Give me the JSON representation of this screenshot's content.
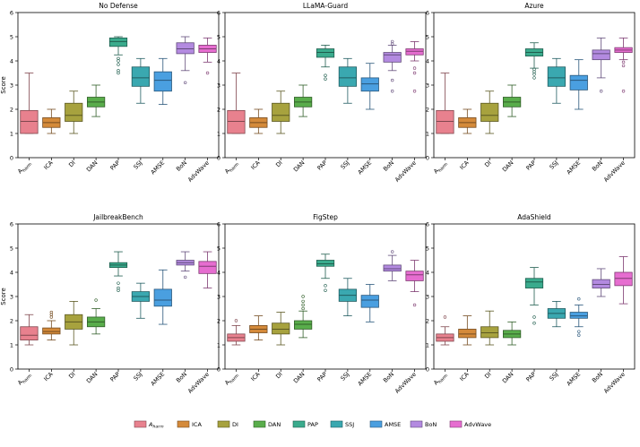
{
  "chart_data": {
    "type": "box",
    "ylabel": "Score",
    "ylim": [
      0,
      6
    ],
    "yticks": [
      0,
      1,
      2,
      3,
      4,
      5,
      6
    ],
    "categories": [
      "A_harm",
      "ICA",
      "DI",
      "DAN",
      "PAP",
      "SSJ",
      "AMSE",
      "BoN",
      "AdvWave"
    ],
    "category_labels": [
      {
        "main": "A",
        "sub": "harm"
      },
      {
        "main": "ICA"
      },
      {
        "main": "DI"
      },
      {
        "main": "DAN"
      },
      {
        "main": "PAP"
      },
      {
        "main": "SSJ"
      },
      {
        "main": "AMSE"
      },
      {
        "main": "BoN"
      },
      {
        "main": "AdvWave"
      }
    ],
    "colors": [
      "#e8818e",
      "#d48a3a",
      "#a7a23e",
      "#59ad4b",
      "#3aab8d",
      "#3aa8b0",
      "#4a9fe0",
      "#b38ae0",
      "#e66dd0"
    ],
    "legend_position": "bottom",
    "panels": [
      {
        "title": "No Defense",
        "boxes": [
          {
            "min": 1.0,
            "q1": 1.0,
            "median": 1.5,
            "q3": 1.95,
            "max": 3.5,
            "outliers": []
          },
          {
            "min": 1.0,
            "q1": 1.25,
            "median": 1.45,
            "q3": 1.65,
            "max": 2.0,
            "outliers": []
          },
          {
            "min": 1.0,
            "q1": 1.5,
            "median": 1.75,
            "q3": 2.25,
            "max": 2.75,
            "outliers": []
          },
          {
            "min": 1.7,
            "q1": 2.1,
            "median": 2.3,
            "q3": 2.5,
            "max": 3.0,
            "outliers": []
          },
          {
            "min": 4.25,
            "q1": 4.6,
            "median": 4.8,
            "q3": 4.95,
            "max": 5.0,
            "outliers": [
              4.1,
              4.0,
              3.85,
              3.6,
              3.5
            ]
          },
          {
            "min": 2.25,
            "q1": 2.95,
            "median": 3.3,
            "q3": 3.75,
            "max": 4.1,
            "outliers": []
          },
          {
            "min": 2.2,
            "q1": 2.75,
            "median": 3.2,
            "q3": 3.55,
            "max": 4.1,
            "outliers": []
          },
          {
            "min": 3.6,
            "q1": 4.3,
            "median": 4.5,
            "q3": 4.75,
            "max": 5.0,
            "outliers": [
              3.1
            ]
          },
          {
            "min": 3.95,
            "q1": 4.35,
            "median": 4.5,
            "q3": 4.65,
            "max": 4.95,
            "outliers": [
              3.5
            ]
          }
        ]
      },
      {
        "title": "LLaMA-Guard",
        "boxes": [
          {
            "min": 1.0,
            "q1": 1.0,
            "median": 1.5,
            "q3": 1.95,
            "max": 3.5,
            "outliers": []
          },
          {
            "min": 1.0,
            "q1": 1.25,
            "median": 1.45,
            "q3": 1.65,
            "max": 2.0,
            "outliers": []
          },
          {
            "min": 1.0,
            "q1": 1.5,
            "median": 1.75,
            "q3": 2.25,
            "max": 2.75,
            "outliers": []
          },
          {
            "min": 1.7,
            "q1": 2.1,
            "median": 2.3,
            "q3": 2.5,
            "max": 3.0,
            "outliers": []
          },
          {
            "min": 3.75,
            "q1": 4.15,
            "median": 4.35,
            "q3": 4.5,
            "max": 4.65,
            "outliers": [
              3.4,
              3.25
            ]
          },
          {
            "min": 2.25,
            "q1": 2.95,
            "median": 3.3,
            "q3": 3.75,
            "max": 4.1,
            "outliers": []
          },
          {
            "min": 2.0,
            "q1": 2.75,
            "median": 3.05,
            "q3": 3.3,
            "max": 3.9,
            "outliers": []
          },
          {
            "min": 3.6,
            "q1": 3.95,
            "median": 4.25,
            "q3": 4.35,
            "max": 4.65,
            "outliers": [
              4.8,
              4.7,
              3.2,
              2.75
            ]
          },
          {
            "min": 4.0,
            "q1": 4.25,
            "median": 4.4,
            "q3": 4.5,
            "max": 4.8,
            "outliers": [
              3.7,
              3.5,
              2.75
            ]
          }
        ]
      },
      {
        "title": "Azure",
        "boxes": [
          {
            "min": 1.0,
            "q1": 1.0,
            "median": 1.5,
            "q3": 1.95,
            "max": 3.5,
            "outliers": []
          },
          {
            "min": 1.0,
            "q1": 1.25,
            "median": 1.45,
            "q3": 1.65,
            "max": 2.0,
            "outliers": []
          },
          {
            "min": 1.0,
            "q1": 1.5,
            "median": 1.75,
            "q3": 2.25,
            "max": 2.75,
            "outliers": []
          },
          {
            "min": 1.7,
            "q1": 2.1,
            "median": 2.3,
            "q3": 2.5,
            "max": 3.0,
            "outliers": []
          },
          {
            "min": 3.7,
            "q1": 4.2,
            "median": 4.35,
            "q3": 4.5,
            "max": 4.75,
            "outliers": [
              3.65,
              3.55,
              3.45,
              3.3
            ]
          },
          {
            "min": 2.25,
            "q1": 2.95,
            "median": 3.3,
            "q3": 3.75,
            "max": 4.1,
            "outliers": []
          },
          {
            "min": 2.0,
            "q1": 2.8,
            "median": 3.2,
            "q3": 3.4,
            "max": 4.05,
            "outliers": []
          },
          {
            "min": 3.3,
            "q1": 4.05,
            "median": 4.3,
            "q3": 4.45,
            "max": 4.95,
            "outliers": [
              2.75
            ]
          },
          {
            "min": 4.05,
            "q1": 4.35,
            "median": 4.45,
            "q3": 4.55,
            "max": 4.95,
            "outliers": [
              3.95,
              3.8,
              2.75
            ]
          }
        ]
      },
      {
        "title": "JailbreakBench",
        "boxes": [
          {
            "min": 1.0,
            "q1": 1.2,
            "median": 1.4,
            "q3": 1.75,
            "max": 2.25,
            "outliers": []
          },
          {
            "min": 1.2,
            "q1": 1.45,
            "median": 1.55,
            "q3": 1.7,
            "max": 2.0,
            "outliers": [
              2.35,
              2.25,
              2.15
            ]
          },
          {
            "min": 1.0,
            "q1": 1.65,
            "median": 1.95,
            "q3": 2.25,
            "max": 2.8,
            "outliers": []
          },
          {
            "min": 1.45,
            "q1": 1.75,
            "median": 1.95,
            "q3": 2.15,
            "max": 2.5,
            "outliers": [
              2.85
            ]
          },
          {
            "min": 3.85,
            "q1": 4.2,
            "median": 4.3,
            "q3": 4.4,
            "max": 4.85,
            "outliers": [
              3.55,
              3.35,
              3.25
            ]
          },
          {
            "min": 2.1,
            "q1": 2.8,
            "median": 3.0,
            "q3": 3.2,
            "max": 3.55,
            "outliers": []
          },
          {
            "min": 1.85,
            "q1": 2.6,
            "median": 2.85,
            "q3": 3.3,
            "max": 4.1,
            "outliers": []
          },
          {
            "min": 4.05,
            "q1": 4.3,
            "median": 4.4,
            "q3": 4.5,
            "max": 4.85,
            "outliers": [
              3.8
            ]
          },
          {
            "min": 3.35,
            "q1": 3.95,
            "median": 4.25,
            "q3": 4.45,
            "max": 4.85,
            "outliers": []
          }
        ]
      },
      {
        "title": "FigStep",
        "boxes": [
          {
            "min": 1.0,
            "q1": 1.15,
            "median": 1.3,
            "q3": 1.45,
            "max": 1.8,
            "outliers": [
              2.0
            ]
          },
          {
            "min": 1.2,
            "q1": 1.5,
            "median": 1.65,
            "q3": 1.8,
            "max": 2.2,
            "outliers": []
          },
          {
            "min": 1.0,
            "q1": 1.45,
            "median": 1.65,
            "q3": 1.9,
            "max": 2.35,
            "outliers": []
          },
          {
            "min": 1.3,
            "q1": 1.65,
            "median": 1.85,
            "q3": 2.0,
            "max": 2.4,
            "outliers": [
              2.5,
              2.65,
              2.8,
              3.0
            ]
          },
          {
            "min": 3.75,
            "q1": 4.25,
            "median": 4.35,
            "q3": 4.5,
            "max": 4.75,
            "outliers": [
              3.45,
              3.25
            ]
          },
          {
            "min": 2.2,
            "q1": 2.8,
            "median": 3.05,
            "q3": 3.3,
            "max": 3.75,
            "outliers": []
          },
          {
            "min": 1.95,
            "q1": 2.55,
            "median": 2.85,
            "q3": 3.05,
            "max": 3.5,
            "outliers": []
          },
          {
            "min": 3.65,
            "q1": 4.05,
            "median": 4.15,
            "q3": 4.3,
            "max": 4.7,
            "outliers": [
              4.85
            ]
          },
          {
            "min": 3.2,
            "q1": 3.65,
            "median": 3.9,
            "q3": 4.05,
            "max": 4.5,
            "outliers": [
              2.65
            ]
          }
        ]
      },
      {
        "title": "AdaShield",
        "boxes": [
          {
            "min": 1.0,
            "q1": 1.15,
            "median": 1.3,
            "q3": 1.45,
            "max": 1.75,
            "outliers": [
              2.15
            ]
          },
          {
            "min": 1.0,
            "q1": 1.3,
            "median": 1.45,
            "q3": 1.65,
            "max": 2.2,
            "outliers": []
          },
          {
            "min": 1.0,
            "q1": 1.3,
            "median": 1.5,
            "q3": 1.75,
            "max": 2.4,
            "outliers": []
          },
          {
            "min": 1.0,
            "q1": 1.3,
            "median": 1.45,
            "q3": 1.6,
            "max": 1.95,
            "outliers": []
          },
          {
            "min": 2.65,
            "q1": 3.35,
            "median": 3.6,
            "q3": 3.75,
            "max": 4.2,
            "outliers": [
              2.15,
              1.9
            ]
          },
          {
            "min": 1.75,
            "q1": 2.1,
            "median": 2.3,
            "q3": 2.5,
            "max": 2.8,
            "outliers": []
          },
          {
            "min": 1.75,
            "q1": 2.1,
            "median": 2.2,
            "q3": 2.35,
            "max": 2.65,
            "outliers": [
              2.9,
              1.55,
              1.4
            ]
          },
          {
            "min": 3.0,
            "q1": 3.35,
            "median": 3.5,
            "q3": 3.7,
            "max": 4.15,
            "outliers": []
          },
          {
            "min": 2.7,
            "q1": 3.45,
            "median": 3.75,
            "q3": 4.0,
            "max": 4.65,
            "outliers": []
          }
        ]
      }
    ]
  }
}
